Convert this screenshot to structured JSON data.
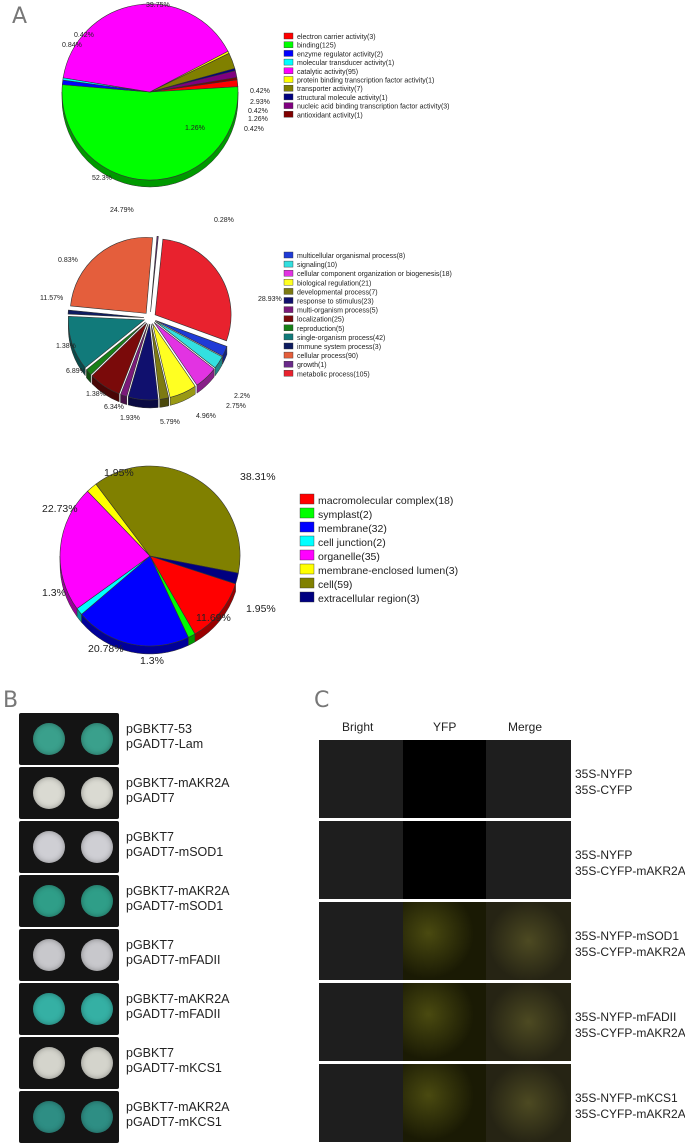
{
  "panels": {
    "a": "A",
    "b": "B",
    "c": "C"
  },
  "chart_data": [
    {
      "type": "pie",
      "title": "",
      "categories": [
        "electron carrier activity(3)",
        "binding(125)",
        "enzyme regulator activity(2)",
        "molecular transducer activity(1)",
        "catalytic activity(95)",
        "protein binding transcription factor activity(1)",
        "transporter activity(7)",
        "structural molecule activity(1)",
        "nucleic acid binding transcription factor activity(3)",
        "antioxidant activity(1)"
      ],
      "values": [
        3,
        125,
        2,
        1,
        95,
        1,
        7,
        1,
        3,
        1
      ],
      "percent_labels": [
        "1.26%",
        "52.3%",
        "0.84%",
        "0.42%",
        "39.75%",
        "0.42%",
        "2.93%",
        "0.42%",
        "1.26%",
        "0.42%"
      ],
      "colors": [
        "#ff0000",
        "#00ff00",
        "#0000ff",
        "#00ffff",
        "#ff00ff",
        "#ffff00",
        "#808000",
        "#000080",
        "#800080",
        "#800000"
      ],
      "legend_position": "right"
    },
    {
      "type": "pie",
      "title": "",
      "categories": [
        "multicellular organismal process(8)",
        "signaling(10)",
        "cellular component organization or biogenesis(18)",
        "biological regulation(21)",
        "developmental process(7)",
        "response to stimulus(23)",
        "multi-organism process(5)",
        "localization(25)",
        "reproduction(5)",
        "single-organism process(42)",
        "immune system process(3)",
        "cellular process(90)",
        "growth(1)",
        "metabolic process(105)"
      ],
      "values": [
        8,
        10,
        18,
        21,
        7,
        23,
        5,
        25,
        5,
        42,
        3,
        90,
        1,
        105
      ],
      "percent_labels": [
        "2.2%",
        "2.75%",
        "4.96%",
        "5.79%",
        "1.93%",
        "6.34%",
        "1.38%",
        "6.89%",
        "1.38%",
        "11.57%",
        "0.83%",
        "24.79%",
        "0.28%",
        "28.93%"
      ],
      "colors": [
        "#1f3bd6",
        "#33e0e0",
        "#e233e2",
        "#ffff22",
        "#7d7a12",
        "#10106e",
        "#7a1a7a",
        "#7a0a0a",
        "#178017",
        "#117a7a",
        "#0d1b60",
        "#e45e3c",
        "#6a2a8a",
        "#e8222e"
      ],
      "legend_position": "right"
    },
    {
      "type": "pie",
      "title": "",
      "categories": [
        "macromolecular complex(18)",
        "symplast(2)",
        "membrane(32)",
        "cell junction(2)",
        "organelle(35)",
        "membrane-enclosed lumen(3)",
        "cell(59)",
        "extracellular region(3)"
      ],
      "values": [
        18,
        2,
        32,
        2,
        35,
        3,
        59,
        3
      ],
      "percent_labels": [
        "11.69%",
        "1.3%",
        "20.78%",
        "1.3%",
        "22.73%",
        "1.95%",
        "38.31%",
        "1.95%"
      ],
      "colors": [
        "#ff0000",
        "#00ff00",
        "#0000ff",
        "#00ffff",
        "#ff00ff",
        "#ffff00",
        "#808000",
        "#000080"
      ],
      "legend_position": "right"
    }
  ],
  "panel_b": {
    "rows": [
      {
        "line1": "pGBKT7-53",
        "line2": "pGADT7-Lam",
        "colony": "#3aa08c"
      },
      {
        "line1": "pGBKT7-mAKR2A",
        "line2": "pGADT7",
        "colony": "#dadad2"
      },
      {
        "line1": "pGBKT7",
        "line2": "pGADT7-mSOD1",
        "colony": "#cfcfd4"
      },
      {
        "line1": "pGBKT7-mAKR2A",
        "line2": "pGADT7-mSOD1",
        "colony": "#2f9e88"
      },
      {
        "line1": "pGBKT7",
        "line2": "pGADT7-mFADII",
        "colony": "#c8c8cc"
      },
      {
        "line1": "pGBKT7-mAKR2A",
        "line2": "pGADT7-mFADII",
        "colony": "#35b0a4"
      },
      {
        "line1": "pGBKT7",
        "line2": "pGADT7-mKCS1",
        "colony": "#d4d4cc"
      },
      {
        "line1": "pGBKT7-mAKR2A",
        "line2": "pGADT7-mKCS1",
        "colony": "#2e8e84"
      }
    ]
  },
  "panel_c": {
    "headers": [
      "Bright",
      "YFP",
      "Merge"
    ],
    "rows": [
      {
        "line1": "35S-NYFP",
        "line2": "35S-CYFP",
        "yfp": false
      },
      {
        "line1": "35S-NYFP",
        "line2": "35S-CYFP-mAKR2A",
        "yfp": false
      },
      {
        "line1": "35S-NYFP-mSOD1",
        "line2": "35S-CYFP-mAKR2A",
        "yfp": true
      },
      {
        "line1": "35S-NYFP-mFADII",
        "line2": "35S-CYFP-mAKR2A",
        "yfp": true
      },
      {
        "line1": "35S-NYFP-mKCS1",
        "line2": "35S-CYFP-mAKR2A",
        "yfp": true
      }
    ]
  }
}
